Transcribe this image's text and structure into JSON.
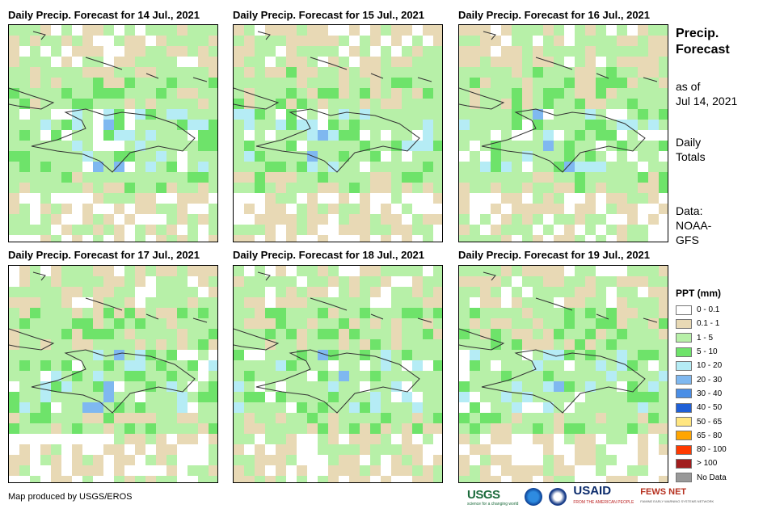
{
  "panels": [
    {
      "title": "Daily Precip. Forecast for 14 Jul., 2021",
      "seed": 14
    },
    {
      "title": "Daily Precip. Forecast for 15 Jul., 2021",
      "seed": 15
    },
    {
      "title": "Daily Precip. Forecast for 16 Jul., 2021",
      "seed": 16
    },
    {
      "title": "Daily Precip. Forecast for 17 Jul., 2021",
      "seed": 17
    },
    {
      "title": "Daily Precip. Forecast for 18 Jul., 2021",
      "seed": 18
    },
    {
      "title": "Daily Precip. Forecast for 19 Jul., 2021",
      "seed": 19
    }
  ],
  "side": {
    "title_line1": "Precip.",
    "title_line2": "Forecast",
    "asof_line1": "as of",
    "asof_line2": "Jul 14, 2021",
    "daily_line1": "Daily",
    "daily_line2": "Totals",
    "data_line1": "Data:",
    "data_line2": "NOAA-",
    "data_line3": "GFS"
  },
  "legend": {
    "title": "PPT (mm)",
    "items": [
      {
        "label": "0 - 0.1",
        "color": "#ffffff"
      },
      {
        "label": "0.1 - 1",
        "color": "#e8d9b5"
      },
      {
        "label": "1 - 5",
        "color": "#b7f0a8"
      },
      {
        "label": "5 - 10",
        "color": "#6ee36a"
      },
      {
        "label": "10 - 20",
        "color": "#b5ecf5"
      },
      {
        "label": "20 - 30",
        "color": "#7fb8f0"
      },
      {
        "label": "30 - 40",
        "color": "#4a8ee6"
      },
      {
        "label": "40 - 50",
        "color": "#1f5fd6"
      },
      {
        "label": "50 - 65",
        "color": "#ffe680"
      },
      {
        "label": "65 - 80",
        "color": "#ffa500"
      },
      {
        "label": "80 - 100",
        "color": "#ff3a00"
      },
      {
        "label": "> 100",
        "color": "#a11d1d"
      },
      {
        "label": "No Data",
        "color": "#999999"
      }
    ]
  },
  "footer": {
    "credit": "Map produced by USGS/EROS"
  },
  "logos": {
    "usgs": "USGS",
    "usgs_tag": "science for a changing world",
    "usaid": "USAID",
    "usaid_tag": "FROM THE AMERICAN PEOPLE",
    "fews": "FEWS NET",
    "fews_tag": "FAMINE EARLY WARNING SYSTEMS NETWORK"
  }
}
